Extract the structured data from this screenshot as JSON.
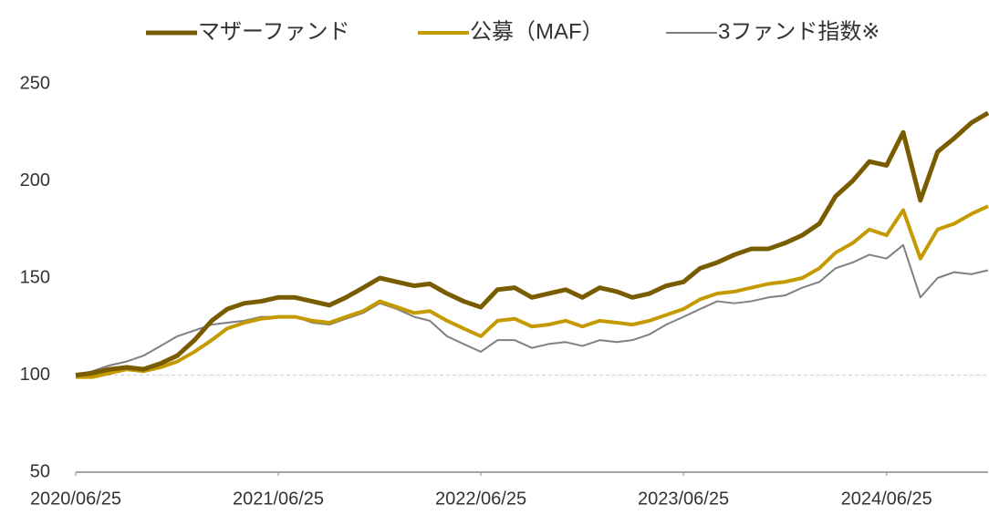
{
  "chart_data": {
    "type": "line",
    "x": [
      "2020/06/25",
      "2020/07/25",
      "2020/08/25",
      "2020/09/25",
      "2020/10/25",
      "2020/11/25",
      "2020/12/25",
      "2021/01/25",
      "2021/02/25",
      "2021/03/25",
      "2021/04/25",
      "2021/05/25",
      "2021/06/25",
      "2021/07/25",
      "2021/08/25",
      "2021/09/25",
      "2021/10/25",
      "2021/11/25",
      "2021/12/25",
      "2022/01/25",
      "2022/02/25",
      "2022/03/25",
      "2022/04/25",
      "2022/05/25",
      "2022/06/25",
      "2022/07/25",
      "2022/08/25",
      "2022/09/25",
      "2022/10/25",
      "2022/11/25",
      "2022/12/25",
      "2023/01/25",
      "2023/02/25",
      "2023/03/25",
      "2023/04/25",
      "2023/05/25",
      "2023/06/25",
      "2023/07/25",
      "2023/08/25",
      "2023/09/25",
      "2023/10/25",
      "2023/11/25",
      "2023/12/25",
      "2024/01/25",
      "2024/02/25",
      "2024/03/25",
      "2024/04/25",
      "2024/05/25",
      "2024/06/25",
      "2024/07/25",
      "2024/08/25",
      "2024/09/25",
      "2024/10/25",
      "2024/11/25",
      "2024/12/25"
    ],
    "series": [
      {
        "name": "マザーファンド",
        "color": "#7a5c00",
        "width": 5,
        "values": [
          100,
          101,
          103,
          104,
          103,
          106,
          110,
          118,
          128,
          134,
          137,
          138,
          140,
          140,
          138,
          136,
          140,
          145,
          150,
          148,
          146,
          147,
          142,
          138,
          135,
          144,
          145,
          140,
          142,
          144,
          140,
          145,
          143,
          140,
          142,
          146,
          148,
          155,
          158,
          162,
          165,
          165,
          168,
          172,
          178,
          192,
          200,
          210,
          208,
          225,
          190,
          215,
          222,
          230,
          235
        ]
      },
      {
        "name": "公募（MAF）",
        "color": "#c49a00",
        "width": 4,
        "values": [
          99,
          99,
          101,
          103,
          102,
          104,
          107,
          112,
          118,
          124,
          127,
          129,
          130,
          130,
          128,
          127,
          130,
          133,
          138,
          135,
          132,
          133,
          128,
          124,
          120,
          128,
          129,
          125,
          126,
          128,
          125,
          128,
          127,
          126,
          128,
          131,
          134,
          139,
          142,
          143,
          145,
          147,
          148,
          150,
          155,
          163,
          168,
          175,
          172,
          185,
          160,
          175,
          178,
          183,
          187
        ]
      },
      {
        "name": "3ファンド指数※",
        "color": "#808080",
        "width": 2,
        "values": [
          100,
          102,
          105,
          107,
          110,
          115,
          120,
          123,
          126,
          127,
          128,
          130,
          130,
          130,
          127,
          126,
          129,
          132,
          137,
          134,
          130,
          128,
          120,
          116,
          112,
          118,
          118,
          114,
          116,
          117,
          115,
          118,
          117,
          118,
          121,
          126,
          130,
          134,
          138,
          137,
          138,
          140,
          141,
          145,
          148,
          155,
          158,
          162,
          160,
          167,
          140,
          150,
          153,
          152,
          154
        ]
      }
    ],
    "xlim": [
      "2020/06/25",
      "2024/12/25"
    ],
    "xticks": [
      "2020/06/25",
      "2021/06/25",
      "2022/06/25",
      "2023/06/25",
      "2024/06/25"
    ],
    "ylim": [
      50,
      250
    ],
    "yticks": [
      50,
      100,
      150,
      200,
      250
    ],
    "reference_line": 100,
    "legend": "top"
  }
}
